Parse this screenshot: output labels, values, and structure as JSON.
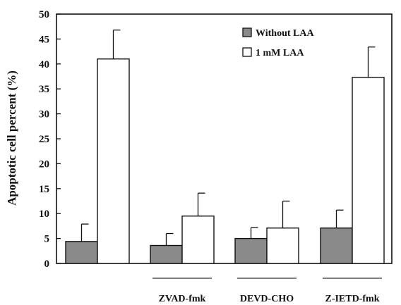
{
  "chart_data": {
    "type": "bar",
    "title": "",
    "xlabel": "",
    "ylabel": "Apoptotic cell percent (%)",
    "ylim": [
      0,
      50
    ],
    "yticks": [
      0,
      5,
      10,
      15,
      20,
      25,
      30,
      35,
      40,
      45,
      50
    ],
    "grid": false,
    "legend_position": "top-right",
    "categories": [
      "",
      "ZVAD-fmk",
      "DEVD-CHO",
      "Z-IETD-fmk"
    ],
    "series": [
      {
        "name": "Without LAA",
        "color": "#8a8a8a",
        "values": [
          4.4,
          3.6,
          5.0,
          7.1
        ],
        "errors": [
          3.5,
          2.4,
          2.2,
          3.6
        ]
      },
      {
        "name": "1 mM LAA",
        "color": "#ffffff",
        "values": [
          41.0,
          9.5,
          7.1,
          37.3
        ],
        "errors": [
          5.8,
          4.6,
          5.4,
          6.1
        ]
      }
    ]
  }
}
